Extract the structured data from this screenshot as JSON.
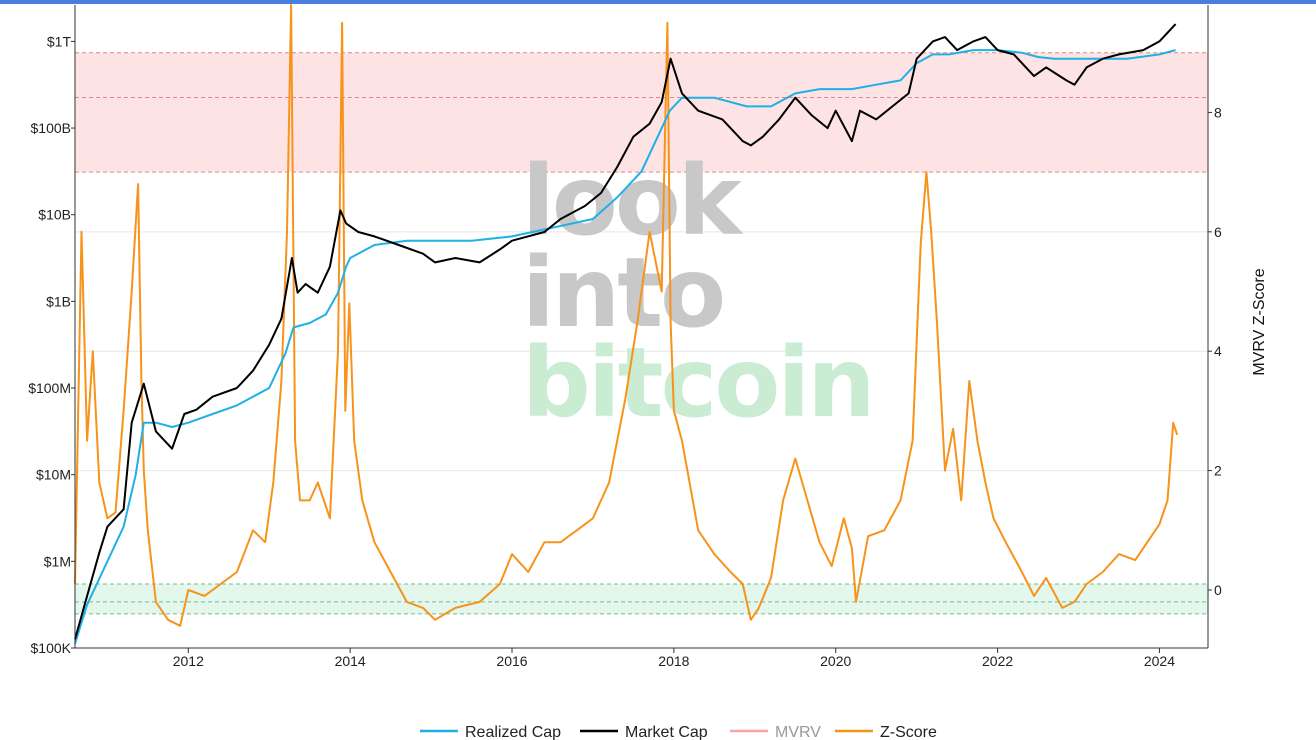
{
  "colors": {
    "top_bar": "#4a7fe0",
    "realized_cap": "#1fb0e6",
    "market_cap": "#000000",
    "mvrv": "#f4a6a6",
    "z_score": "#f7931a",
    "red_band": "#fde3e3",
    "green_band": "#e3f7ec",
    "watermark_gray": "#c8c8c8",
    "watermark_green": "#c9ecd2"
  },
  "watermark": {
    "line1": "look",
    "line2": "into",
    "line3": "bitcoin"
  },
  "chart_data": {
    "type": "line",
    "title": "",
    "xlabel": "",
    "ylabel_left": "",
    "ylabel_right": "MVRV Z-Score",
    "x_range": [
      2010.6,
      2024.6
    ],
    "x_ticks": [
      {
        "value": 2012,
        "label": "2012"
      },
      {
        "value": 2014,
        "label": "2014"
      },
      {
        "value": 2016,
        "label": "2016"
      },
      {
        "value": 2018,
        "label": "2018"
      },
      {
        "value": 2020,
        "label": "2020"
      },
      {
        "value": 2022,
        "label": "2022"
      },
      {
        "value": 2024,
        "label": "2024"
      }
    ],
    "y_left": {
      "scale": "log",
      "range_log10": [
        5.0,
        12.42
      ],
      "ticks": [
        {
          "log10": 5,
          "label": "$100K"
        },
        {
          "log10": 6,
          "label": "$1M"
        },
        {
          "log10": 7,
          "label": "$10M"
        },
        {
          "log10": 8,
          "label": "$100M"
        },
        {
          "log10": 9,
          "label": "$1B"
        },
        {
          "log10": 10,
          "label": "$10B"
        },
        {
          "log10": 11,
          "label": "$100B"
        },
        {
          "log10": 12,
          "label": "$1T"
        }
      ]
    },
    "y_right": {
      "scale": "linear",
      "range": [
        -0.9725,
        9.8
      ],
      "ticks": [
        {
          "value": 0,
          "label": "0"
        },
        {
          "value": 2,
          "label": "2"
        },
        {
          "value": 4,
          "label": "4"
        },
        {
          "value": 6,
          "label": "6"
        },
        {
          "value": 8,
          "label": "8"
        }
      ]
    },
    "bands": [
      {
        "name": "overvalued",
        "from": 7.0,
        "to": 9.0,
        "axis": "right",
        "mid_line": 8.25
      },
      {
        "name": "undervalued",
        "from": -0.4,
        "to": 0.1,
        "axis": "right",
        "mid_line": -0.2
      }
    ],
    "series": [
      {
        "name": "Realized Cap",
        "axis": "left",
        "x": [
          2010.6,
          2010.75,
          2010.9,
          2011.0,
          2011.2,
          2011.35,
          2011.45,
          2011.6,
          2011.8,
          2012.0,
          2012.3,
          2012.6,
          2013.0,
          2013.2,
          2013.3,
          2013.5,
          2013.7,
          2013.85,
          2013.95,
          2014.0,
          2014.3,
          2014.7,
          2015.0,
          2015.5,
          2016.0,
          2016.5,
          2017.0,
          2017.3,
          2017.6,
          2017.8,
          2017.95,
          2018.1,
          2018.5,
          2018.9,
          2019.2,
          2019.5,
          2019.8,
          2020.2,
          2020.5,
          2020.8,
          2021.0,
          2021.2,
          2021.4,
          2021.7,
          2022.0,
          2022.3,
          2022.5,
          2022.7,
          2023.0,
          2023.3,
          2023.6,
          2024.0,
          2024.2
        ],
        "values_log10": [
          5.05,
          5.5,
          5.8,
          6.0,
          6.4,
          7.0,
          7.6,
          7.6,
          7.55,
          7.6,
          7.7,
          7.8,
          8.0,
          8.4,
          8.7,
          8.75,
          8.85,
          9.1,
          9.4,
          9.5,
          9.65,
          9.7,
          9.7,
          9.7,
          9.75,
          9.85,
          9.95,
          10.2,
          10.5,
          10.9,
          11.2,
          11.35,
          11.35,
          11.25,
          11.25,
          11.4,
          11.45,
          11.45,
          11.5,
          11.55,
          11.75,
          11.85,
          11.85,
          11.9,
          11.9,
          11.87,
          11.82,
          11.8,
          11.8,
          11.8,
          11.8,
          11.85,
          11.9
        ]
      },
      {
        "name": "Market Cap",
        "axis": "left",
        "x": [
          2010.6,
          2010.75,
          2010.9,
          2011.0,
          2011.2,
          2011.3,
          2011.45,
          2011.6,
          2011.8,
          2011.95,
          2012.1,
          2012.3,
          2012.6,
          2012.8,
          2013.0,
          2013.15,
          2013.28,
          2013.35,
          2013.45,
          2013.6,
          2013.75,
          2013.88,
          2013.95,
          2014.1,
          2014.3,
          2014.6,
          2014.9,
          2015.05,
          2015.3,
          2015.6,
          2015.85,
          2016.0,
          2016.4,
          2016.6,
          2016.9,
          2017.1,
          2017.3,
          2017.5,
          2017.7,
          2017.85,
          2017.96,
          2018.1,
          2018.3,
          2018.6,
          2018.85,
          2018.95,
          2019.1,
          2019.3,
          2019.5,
          2019.7,
          2019.9,
          2020.0,
          2020.2,
          2020.3,
          2020.5,
          2020.7,
          2020.9,
          2021.0,
          2021.2,
          2021.35,
          2021.5,
          2021.7,
          2021.85,
          2022.0,
          2022.2,
          2022.45,
          2022.6,
          2022.85,
          2022.95,
          2023.1,
          2023.3,
          2023.5,
          2023.8,
          2024.0,
          2024.2
        ],
        "values_log10": [
          5.1,
          5.6,
          6.1,
          6.4,
          6.6,
          7.6,
          8.05,
          7.5,
          7.3,
          7.7,
          7.75,
          7.9,
          8.0,
          8.2,
          8.5,
          8.8,
          9.5,
          9.1,
          9.2,
          9.1,
          9.4,
          10.05,
          9.9,
          9.8,
          9.75,
          9.65,
          9.55,
          9.45,
          9.5,
          9.45,
          9.6,
          9.7,
          9.8,
          9.95,
          10.1,
          10.25,
          10.55,
          10.9,
          11.05,
          11.3,
          11.8,
          11.4,
          11.2,
          11.1,
          10.85,
          10.8,
          10.9,
          11.1,
          11.35,
          11.15,
          11.0,
          11.2,
          10.85,
          11.2,
          11.1,
          11.25,
          11.4,
          11.8,
          12.0,
          12.05,
          11.9,
          12.0,
          12.05,
          11.9,
          11.85,
          11.6,
          11.7,
          11.55,
          11.5,
          11.7,
          11.8,
          11.85,
          11.9,
          12.0,
          12.2
        ]
      },
      {
        "name": "MVRV",
        "axis": "left",
        "x": [],
        "values_log10": []
      },
      {
        "name": "Z-Score",
        "axis": "right",
        "x": [
          2010.6,
          2010.68,
          2010.75,
          2010.82,
          2010.9,
          2011.0,
          2011.1,
          2011.2,
          2011.3,
          2011.38,
          2011.42,
          2011.45,
          2011.5,
          2011.6,
          2011.75,
          2011.9,
          2012.0,
          2012.2,
          2012.4,
          2012.6,
          2012.8,
          2012.95,
          2013.05,
          2013.15,
          2013.22,
          2013.27,
          2013.32,
          2013.38,
          2013.5,
          2013.6,
          2013.75,
          2013.85,
          2013.9,
          2013.94,
          2013.99,
          2014.05,
          2014.15,
          2014.3,
          2014.5,
          2014.7,
          2014.9,
          2015.05,
          2015.3,
          2015.6,
          2015.85,
          2016.0,
          2016.2,
          2016.4,
          2016.6,
          2016.8,
          2017.0,
          2017.2,
          2017.4,
          2017.55,
          2017.7,
          2017.85,
          2017.92,
          2017.96,
          2018.0,
          2018.1,
          2018.3,
          2018.5,
          2018.7,
          2018.85,
          2018.95,
          2019.05,
          2019.2,
          2019.35,
          2019.5,
          2019.65,
          2019.8,
          2019.95,
          2020.1,
          2020.2,
          2020.25,
          2020.4,
          2020.6,
          2020.8,
          2020.95,
          2021.05,
          2021.12,
          2021.18,
          2021.25,
          2021.35,
          2021.45,
          2021.55,
          2021.65,
          2021.75,
          2021.85,
          2021.95,
          2022.1,
          2022.3,
          2022.45,
          2022.6,
          2022.8,
          2022.95,
          2023.1,
          2023.3,
          2023.5,
          2023.7,
          2023.85,
          2024.0,
          2024.1,
          2024.17,
          2024.22
        ],
        "values": [
          0.1,
          6.0,
          2.5,
          4.0,
          1.8,
          1.2,
          1.3,
          3.0,
          5.0,
          6.8,
          3.5,
          2.0,
          1.0,
          -0.2,
          -0.5,
          -0.6,
          0.0,
          -0.1,
          0.1,
          0.3,
          1.0,
          0.8,
          1.8,
          3.5,
          6.0,
          9.8,
          2.5,
          1.5,
          1.5,
          1.8,
          1.2,
          4.0,
          9.5,
          3.0,
          4.8,
          2.5,
          1.5,
          0.8,
          0.3,
          -0.2,
          -0.3,
          -0.5,
          -0.3,
          -0.2,
          0.1,
          0.6,
          0.3,
          0.8,
          0.8,
          1.0,
          1.2,
          1.8,
          3.2,
          4.5,
          6.0,
          5.0,
          9.5,
          4.5,
          3.0,
          2.5,
          1.0,
          0.6,
          0.3,
          0.1,
          -0.5,
          -0.3,
          0.2,
          1.5,
          2.2,
          1.5,
          0.8,
          0.4,
          1.2,
          0.7,
          -0.2,
          0.9,
          1.0,
          1.5,
          2.5,
          5.8,
          7.0,
          6.0,
          4.5,
          2.0,
          2.7,
          1.5,
          3.5,
          2.5,
          1.8,
          1.2,
          0.8,
          0.3,
          -0.1,
          0.2,
          -0.3,
          -0.2,
          0.1,
          0.3,
          0.6,
          0.5,
          0.8,
          1.1,
          1.5,
          2.8,
          2.6
        ]
      }
    ],
    "legend": {
      "position": "bottom-center",
      "entries": [
        {
          "label": "Realized Cap",
          "color_key": "realized_cap"
        },
        {
          "label": "Market Cap",
          "color_key": "market_cap"
        },
        {
          "label": "MVRV",
          "color_key": "mvrv",
          "muted": true
        },
        {
          "label": "Z-Score",
          "color_key": "z_score"
        }
      ]
    }
  }
}
